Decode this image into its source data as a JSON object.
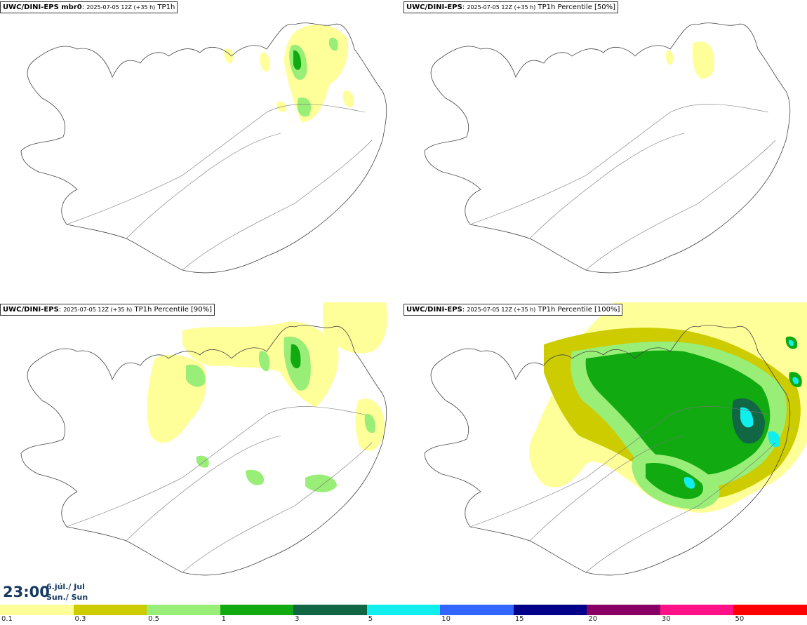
{
  "panels": [
    {
      "model": "UWC/DINI-EPS mbr0",
      "run": "2025-07-05 12Z (+35 h)",
      "field": "TP1h"
    },
    {
      "model": "UWC/DINI-EPS",
      "run": "2025-07-05 12Z (+35 h)",
      "field": "TP1h Percentile [50%]"
    },
    {
      "model": "UWC/DINI-EPS",
      "run": "2025-07-05 12Z (+35 h)",
      "field": "TP1h Percentile [90%]"
    },
    {
      "model": "UWC/DINI-EPS",
      "run": "2025-07-05 12Z (+35 h)",
      "field": "TP1h Percentile [100%]"
    }
  ],
  "time": {
    "clock": "23:00",
    "date_is_en": "6.júl./ Jul",
    "day_is_en": "Sun./ Sun"
  },
  "legend": {
    "thresholds": [
      "0.1",
      "0.3",
      "0.5",
      "1",
      "3",
      "5",
      "10",
      "15",
      "20",
      "30",
      "50"
    ],
    "colors": [
      "#ffff99",
      "#cccc00",
      "#99ee77",
      "#11aa11",
      "#116644",
      "#11eeee",
      "#3366ff",
      "#000088",
      "#880066",
      "#ff1188",
      "#ff0000"
    ]
  }
}
